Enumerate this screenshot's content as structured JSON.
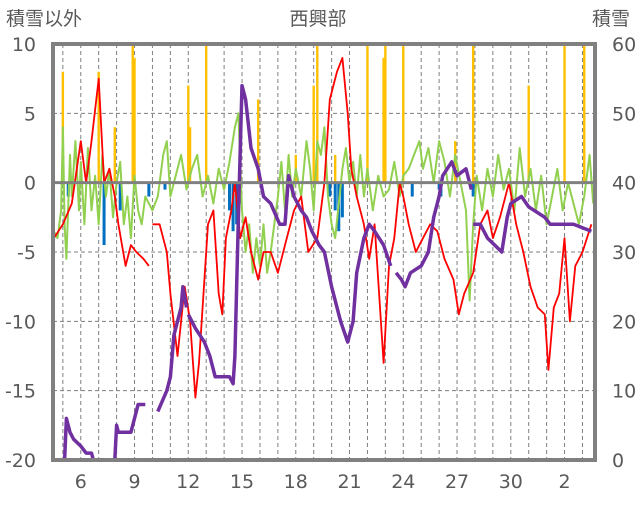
{
  "chart_data": {
    "type": "line",
    "title": "西興部",
    "ylabel_left": "積雪以外",
    "ylabel_right": "積雪",
    "ylim_left": [
      -20,
      10
    ],
    "ylim_right": [
      0,
      60
    ],
    "yticks_left": [
      "10",
      "5",
      "0",
      "-5",
      "-10",
      "-15",
      "-20"
    ],
    "yticks_right": [
      "60",
      "50",
      "40",
      "30",
      "20",
      "10",
      "0"
    ],
    "xlim_days": [
      4.45,
      34.7
    ],
    "xticks": [
      {
        "day": 6,
        "label": "6"
      },
      {
        "day": 9,
        "label": "9"
      },
      {
        "day": 12,
        "label": "12"
      },
      {
        "day": 15,
        "label": "15"
      },
      {
        "day": 18,
        "label": "18"
      },
      {
        "day": 21,
        "label": "21"
      },
      {
        "day": 24,
        "label": "24"
      },
      {
        "day": 27,
        "label": "27"
      },
      {
        "day": 30,
        "label": "30"
      },
      {
        "day": 33,
        "label": "2"
      }
    ],
    "grid": true,
    "colors": {
      "temperature": "#ff0000",
      "green": "#92d050",
      "precip": "#ffc000",
      "blue": "#0070c0",
      "snow": "#7030a0",
      "axis": "#808080"
    },
    "series_precip_bars": [
      [
        5.0,
        8
      ],
      [
        7.0,
        8
      ],
      [
        7.9,
        4
      ],
      [
        8.9,
        10
      ],
      [
        9.0,
        9
      ],
      [
        12.0,
        7
      ],
      [
        12.1,
        4
      ],
      [
        13.0,
        10
      ],
      [
        15.9,
        6
      ],
      [
        18.0,
        2
      ],
      [
        19.0,
        7
      ],
      [
        19.2,
        10
      ],
      [
        20.2,
        2
      ],
      [
        22.0,
        10
      ],
      [
        22.9,
        9
      ],
      [
        23.0,
        10
      ],
      [
        24.0,
        10
      ],
      [
        26.9,
        3
      ],
      [
        27.9,
        10
      ],
      [
        31.0,
        7
      ],
      [
        33.0,
        10
      ],
      [
        34.1,
        10
      ]
    ],
    "series_blue_bars": [
      [
        5.3,
        -1
      ],
      [
        7.3,
        -4.5
      ],
      [
        8.2,
        -2
      ],
      [
        9.8,
        -1
      ],
      [
        10.7,
        -0.5
      ],
      [
        14.3,
        -2
      ],
      [
        14.5,
        -3.5
      ],
      [
        14.7,
        -3
      ],
      [
        14.9,
        -1.5
      ],
      [
        19.9,
        -1
      ],
      [
        20.2,
        -2
      ],
      [
        20.4,
        -3.5
      ],
      [
        20.6,
        -2.5
      ],
      [
        24.5,
        -1
      ],
      [
        26.0,
        -0.5
      ],
      [
        26.1,
        -1
      ],
      [
        27.9,
        -1
      ]
    ],
    "series_temperature": [
      [
        [
          4.5,
          -4
        ],
        [
          5.0,
          -3
        ],
        [
          5.5,
          -1.5
        ],
        [
          6.0,
          3
        ],
        [
          6.3,
          0
        ],
        [
          6.6,
          3
        ],
        [
          7.0,
          7.5
        ],
        [
          7.3,
          0
        ],
        [
          7.6,
          1
        ],
        [
          7.9,
          -1
        ],
        [
          8.1,
          -3
        ],
        [
          8.5,
          -6
        ],
        [
          8.8,
          -4.5
        ],
        [
          9.1,
          -5
        ],
        [
          9.5,
          -5.5
        ],
        [
          9.8,
          -6
        ]
      ],
      [
        [
          10.0,
          -3
        ],
        [
          10.4,
          -3
        ],
        [
          10.8,
          -5
        ],
        [
          11.0,
          -8
        ],
        [
          11.4,
          -12.5
        ],
        [
          11.8,
          -7.5
        ],
        [
          12.1,
          -10
        ],
        [
          12.4,
          -15.5
        ],
        [
          12.6,
          -13
        ],
        [
          12.9,
          -7
        ],
        [
          13.1,
          -3
        ],
        [
          13.4,
          -2
        ],
        [
          13.7,
          -8
        ],
        [
          13.9,
          -9.5
        ],
        [
          14.1,
          -4
        ],
        [
          14.4,
          -2
        ],
        [
          14.6,
          0
        ],
        [
          14.9,
          -4
        ],
        [
          15.2,
          -2.5
        ],
        [
          15.5,
          -5
        ],
        [
          15.9,
          -7
        ],
        [
          16.2,
          -5
        ],
        [
          16.6,
          -5
        ],
        [
          17.0,
          -6.5
        ],
        [
          17.5,
          -4
        ],
        [
          17.9,
          -2
        ],
        [
          18.3,
          -1
        ],
        [
          18.7,
          -5
        ],
        [
          19.2,
          -4
        ],
        [
          19.6,
          0
        ],
        [
          19.9,
          6
        ],
        [
          20.3,
          8
        ],
        [
          20.6,
          9
        ],
        [
          20.9,
          5
        ],
        [
          21.1,
          1
        ],
        [
          21.4,
          -1
        ],
        [
          21.8,
          -3
        ],
        [
          22.1,
          -5.5
        ],
        [
          22.4,
          -3
        ],
        [
          22.7,
          -9
        ],
        [
          22.9,
          -13
        ],
        [
          23.2,
          -6
        ],
        [
          23.5,
          -4
        ],
        [
          23.8,
          0
        ],
        [
          24.0,
          -1
        ],
        [
          24.3,
          -3
        ],
        [
          24.7,
          -5
        ],
        [
          25.1,
          -4
        ],
        [
          25.5,
          -3
        ],
        [
          25.9,
          -3.5
        ],
        [
          26.3,
          -5.5
        ],
        [
          26.8,
          -7
        ],
        [
          27.1,
          -9.5
        ],
        [
          27.4,
          -8
        ],
        [
          27.9,
          -6.5
        ],
        [
          28.3,
          -3
        ],
        [
          28.7,
          -2
        ],
        [
          29.0,
          -4
        ],
        [
          29.4,
          -2.5
        ],
        [
          29.9,
          0
        ],
        [
          30.3,
          -3
        ],
        [
          30.7,
          -5
        ],
        [
          31.1,
          -7.5
        ],
        [
          31.5,
          -9
        ],
        [
          31.9,
          -9.5
        ],
        [
          32.1,
          -13.5
        ],
        [
          32.4,
          -9
        ],
        [
          32.7,
          -8
        ],
        [
          33.0,
          -4
        ],
        [
          33.3,
          -10
        ],
        [
          33.6,
          -6
        ],
        [
          34.0,
          -5
        ],
        [
          34.5,
          -3
        ]
      ]
    ],
    "series_green": [
      [
        4.5,
        -3.5
      ],
      [
        4.7,
        -4
      ],
      [
        4.9,
        -2
      ],
      [
        5.0,
        4
      ],
      [
        5.1,
        -3
      ],
      [
        5.2,
        -5.5
      ],
      [
        5.4,
        2
      ],
      [
        5.5,
        -1
      ],
      [
        5.7,
        3
      ],
      [
        5.9,
        -2
      ],
      [
        6.0,
        1.5
      ],
      [
        6.2,
        -3
      ],
      [
        6.4,
        2.5
      ],
      [
        6.6,
        -2
      ],
      [
        6.8,
        0.5
      ],
      [
        7.0,
        -3
      ],
      [
        7.2,
        2
      ],
      [
        7.4,
        -1
      ],
      [
        7.6,
        1
      ],
      [
        7.8,
        -2.5
      ],
      [
        8.0,
        0
      ],
      [
        8.2,
        1.5
      ],
      [
        8.4,
        -3
      ],
      [
        8.6,
        -1
      ],
      [
        8.8,
        -4
      ],
      [
        9.0,
        0.5
      ],
      [
        9.2,
        -2
      ],
      [
        9.4,
        -3
      ],
      [
        9.6,
        -1
      ],
      [
        10.0,
        -2
      ],
      [
        10.3,
        -1
      ],
      [
        10.6,
        2
      ],
      [
        10.8,
        3
      ],
      [
        11.0,
        -1
      ],
      [
        11.3,
        0.5
      ],
      [
        11.6,
        2
      ],
      [
        11.9,
        -0.5
      ],
      [
        12.2,
        1
      ],
      [
        12.5,
        2
      ],
      [
        12.8,
        -1
      ],
      [
        13.1,
        0.5
      ],
      [
        13.4,
        -1.5
      ],
      [
        13.7,
        1
      ],
      [
        14.0,
        -0.5
      ],
      [
        14.3,
        1.5
      ],
      [
        14.6,
        4
      ],
      [
        14.8,
        5
      ],
      [
        15.0,
        -2
      ],
      [
        15.2,
        -5
      ],
      [
        15.4,
        -3
      ],
      [
        15.6,
        -6.5
      ],
      [
        15.8,
        -4
      ],
      [
        16.0,
        -6
      ],
      [
        16.2,
        -3
      ],
      [
        16.4,
        -6.5
      ],
      [
        16.6,
        -5
      ],
      [
        16.8,
        -3
      ],
      [
        17.0,
        -1
      ],
      [
        17.2,
        1.5
      ],
      [
        17.4,
        -2
      ],
      [
        17.6,
        2
      ],
      [
        17.8,
        -1
      ],
      [
        18.0,
        1
      ],
      [
        18.3,
        -1
      ],
      [
        18.6,
        3
      ],
      [
        18.8,
        1
      ],
      [
        19.0,
        -2
      ],
      [
        19.2,
        3
      ],
      [
        19.4,
        2
      ],
      [
        19.6,
        4
      ],
      [
        19.8,
        -1
      ],
      [
        20.0,
        -3
      ],
      [
        20.2,
        -4
      ],
      [
        20.4,
        -1.5
      ],
      [
        20.6,
        1
      ],
      [
        20.8,
        2.5
      ],
      [
        21.0,
        0
      ],
      [
        21.2,
        1.5
      ],
      [
        21.4,
        -1
      ],
      [
        21.6,
        2
      ],
      [
        21.8,
        -1
      ],
      [
        22.0,
        1
      ],
      [
        22.3,
        -2
      ],
      [
        22.6,
        0.5
      ],
      [
        22.9,
        -1
      ],
      [
        23.2,
        -0.5
      ],
      [
        23.5,
        1.5
      ],
      [
        23.8,
        -1
      ],
      [
        24.0,
        0.5
      ],
      [
        24.3,
        1
      ],
      [
        24.6,
        2
      ],
      [
        24.9,
        3
      ],
      [
        25.1,
        1
      ],
      [
        25.4,
        2.5
      ],
      [
        25.7,
        0
      ],
      [
        26.0,
        3
      ],
      [
        26.3,
        1.5
      ],
      [
        26.6,
        -1
      ],
      [
        26.9,
        2
      ],
      [
        27.2,
        0
      ],
      [
        27.5,
        -2
      ],
      [
        27.7,
        -8.5
      ],
      [
        27.9,
        -3
      ],
      [
        28.1,
        0.5
      ],
      [
        28.4,
        -2
      ],
      [
        28.7,
        1
      ],
      [
        29.0,
        -1
      ],
      [
        29.3,
        2
      ],
      [
        29.6,
        -0.5
      ],
      [
        29.9,
        1
      ],
      [
        30.2,
        -2
      ],
      [
        30.5,
        2.5
      ],
      [
        30.8,
        -1
      ],
      [
        31.1,
        1
      ],
      [
        31.4,
        -2
      ],
      [
        31.7,
        0.5
      ],
      [
        32.0,
        -3
      ],
      [
        32.3,
        -1
      ],
      [
        32.6,
        1
      ],
      [
        32.9,
        -2
      ],
      [
        33.2,
        0
      ],
      [
        33.5,
        -1.5
      ],
      [
        33.8,
        -3
      ],
      [
        34.1,
        -1
      ],
      [
        34.4,
        2
      ],
      [
        34.6,
        -1.5
      ]
    ],
    "series_snow_depth": [
      [
        [
          4.45,
          0
        ],
        [
          5.1,
          0
        ],
        [
          5.2,
          6
        ],
        [
          5.4,
          4
        ],
        [
          5.6,
          3
        ],
        [
          6.0,
          2
        ],
        [
          6.3,
          1
        ],
        [
          6.6,
          1
        ],
        [
          6.7,
          0
        ],
        [
          7.9,
          0
        ],
        [
          8.0,
          5
        ],
        [
          8.1,
          4
        ],
        [
          8.8,
          4
        ],
        [
          9.0,
          6
        ],
        [
          9.2,
          8
        ],
        [
          9.6,
          8
        ]
      ],
      [
        [
          10.3,
          7
        ],
        [
          10.8,
          10
        ],
        [
          11.0,
          12
        ],
        [
          11.2,
          18
        ],
        [
          11.6,
          22
        ],
        [
          11.7,
          25
        ],
        [
          11.9,
          22
        ]
      ],
      [
        [
          12.0,
          21
        ],
        [
          12.4,
          19
        ],
        [
          12.9,
          17
        ],
        [
          13.2,
          15
        ],
        [
          13.5,
          12
        ],
        [
          14.3,
          12
        ],
        [
          14.5,
          11
        ],
        [
          14.6,
          15
        ],
        [
          14.8,
          35
        ],
        [
          15.0,
          54
        ],
        [
          15.2,
          52
        ],
        [
          15.5,
          45
        ],
        [
          15.9,
          42
        ],
        [
          16.2,
          38
        ],
        [
          16.6,
          37
        ],
        [
          17.1,
          34
        ],
        [
          17.4,
          34
        ],
        [
          17.6,
          41
        ],
        [
          17.9,
          38
        ],
        [
          18.3,
          36
        ],
        [
          18.6,
          35
        ],
        [
          18.9,
          33
        ],
        [
          19.3,
          31
        ],
        [
          19.6,
          30
        ],
        [
          20.0,
          25
        ],
        [
          20.5,
          20
        ],
        [
          20.9,
          17
        ],
        [
          21.2,
          20
        ],
        [
          21.4,
          27
        ],
        [
          21.8,
          32
        ],
        [
          22.1,
          34
        ],
        [
          22.4,
          33
        ],
        [
          22.9,
          31
        ],
        [
          23.3,
          28
        ]
      ],
      [
        [
          23.6,
          27
        ],
        [
          23.9,
          26
        ],
        [
          24.1,
          25
        ],
        [
          24.4,
          27
        ],
        [
          25.0,
          28
        ],
        [
          25.4,
          30
        ],
        [
          25.7,
          35
        ],
        [
          26.0,
          38
        ],
        [
          26.2,
          41
        ],
        [
          26.7,
          43
        ],
        [
          27.0,
          41
        ],
        [
          27.5,
          42
        ],
        [
          27.8,
          39
        ]
      ],
      [
        [
          27.9,
          34
        ],
        [
          28.3,
          34
        ],
        [
          28.7,
          32
        ],
        [
          29.5,
          30
        ],
        [
          29.8,
          35
        ],
        [
          30.0,
          37
        ],
        [
          30.6,
          38
        ],
        [
          31.0,
          36.5
        ],
        [
          31.9,
          35
        ],
        [
          32.2,
          34
        ],
        [
          33.5,
          34
        ],
        [
          34.5,
          33
        ]
      ]
    ]
  }
}
